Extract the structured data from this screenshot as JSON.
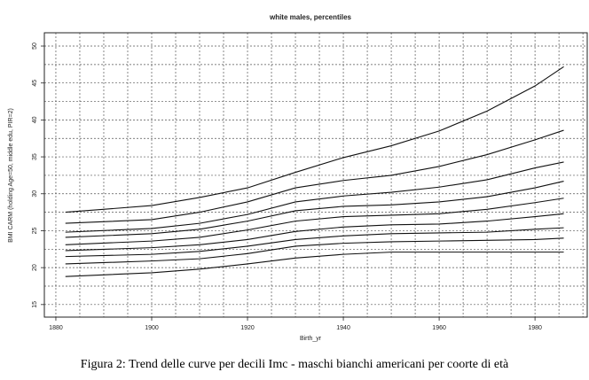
{
  "chart_data": {
    "type": "line",
    "title": "white males, percentiles",
    "x_label": "Birth_yr",
    "y_label": "BMI CARM (holding Age=50, middle edu, PIR=2)",
    "caption": "Figura 2: Trend delle curve per decili Imc - maschi bianchi americani per coorte di età",
    "x": [
      1882,
      1900,
      1910,
      1920,
      1930,
      1940,
      1950,
      1960,
      1970,
      1980,
      1986
    ],
    "series": [
      {
        "color": "#111111",
        "values": [
          27.5,
          28.4,
          29.5,
          30.8,
          32.9,
          34.9,
          36.5,
          38.5,
          41.2,
          44.6,
          47.2
        ]
      },
      {
        "color": "#111111",
        "values": [
          26.0,
          26.5,
          27.5,
          28.9,
          30.8,
          31.8,
          32.5,
          33.7,
          35.3,
          37.3,
          38.6
        ]
      },
      {
        "color": "#111111",
        "values": [
          24.8,
          25.3,
          26.0,
          27.2,
          28.9,
          29.7,
          30.2,
          30.9,
          31.9,
          33.5,
          34.3
        ]
      },
      {
        "color": "#111111",
        "values": [
          24.1,
          24.6,
          25.2,
          26.3,
          27.7,
          28.3,
          28.5,
          28.9,
          29.6,
          30.8,
          31.7
        ]
      },
      {
        "color": "#111111",
        "values": [
          23.1,
          23.6,
          24.1,
          25.1,
          26.3,
          26.9,
          27.1,
          27.3,
          27.9,
          28.8,
          29.4
        ]
      },
      {
        "color": "#111111",
        "values": [
          22.3,
          22.7,
          23.1,
          23.8,
          24.9,
          25.5,
          25.8,
          25.9,
          26.3,
          26.9,
          27.3
        ]
      },
      {
        "color": "#111111",
        "values": [
          21.5,
          21.8,
          22.2,
          22.9,
          23.8,
          24.3,
          24.6,
          24.7,
          24.8,
          25.2,
          25.4
        ]
      },
      {
        "color": "#111111",
        "values": [
          20.5,
          20.9,
          21.2,
          21.9,
          22.9,
          23.3,
          23.5,
          23.6,
          23.7,
          23.8,
          24.0
        ]
      },
      {
        "color": "#111111",
        "values": [
          18.8,
          19.3,
          19.8,
          20.5,
          21.3,
          21.8,
          22.1,
          22.1,
          22.1,
          22.1,
          22.1
        ]
      }
    ],
    "xlim": [
      1877.6,
      1990.9
    ],
    "ylim": [
      13.3,
      51.8
    ],
    "xticks": [
      1880,
      1900,
      1920,
      1940,
      1960,
      1980
    ],
    "yticks": [
      15,
      20,
      25,
      30,
      35,
      40,
      45,
      50
    ],
    "grid": true
  }
}
